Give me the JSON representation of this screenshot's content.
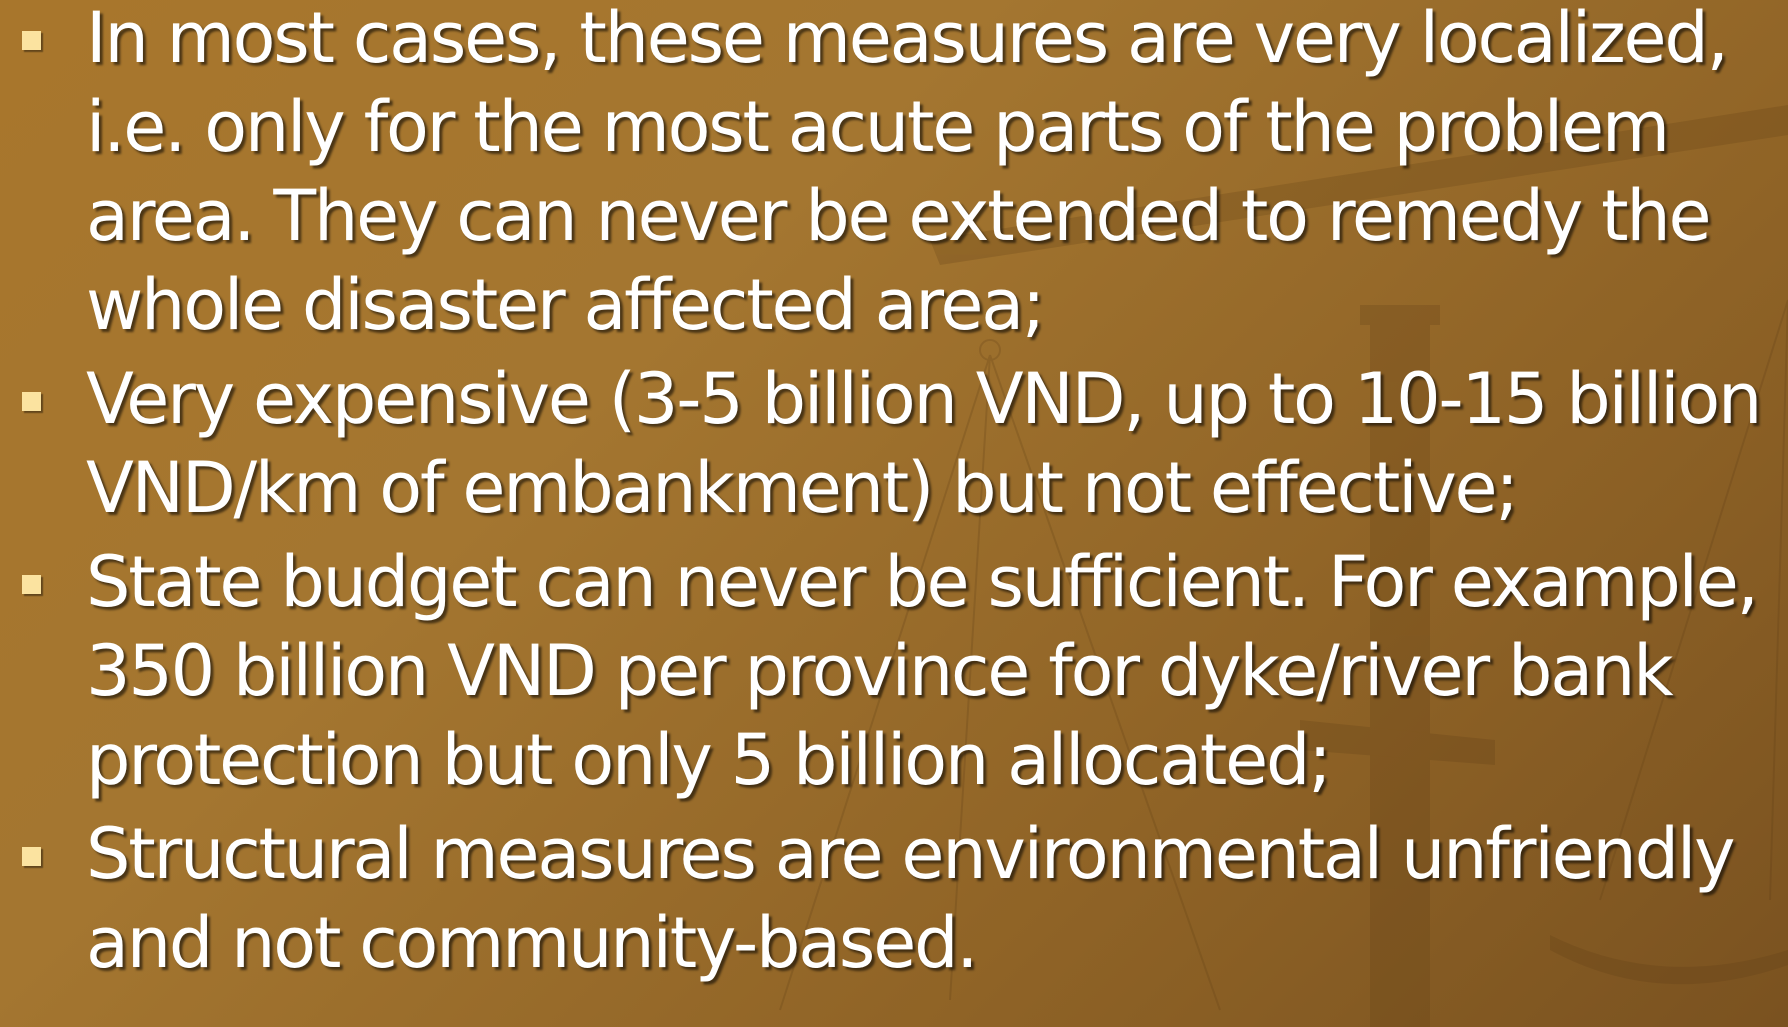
{
  "bullets": [
    "In most cases, these measures are very localized, i.e. only for the most acute parts of the problem area. They can never be extended to remedy the whole disaster affected area;",
    "Very expensive (3-5 billion VND, up to 10-15 billion VND/km of embankment) but not effective;",
    "State budget can never be sufficient. For example, 350 billion VND per province for dyke/river bank protection but only 5 billion allocated;",
    "Structural measures are environmental unfriendly and not community-based."
  ]
}
